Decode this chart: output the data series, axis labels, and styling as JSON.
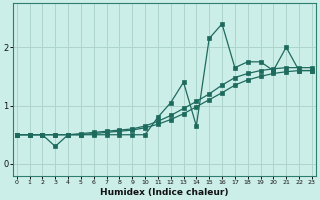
{
  "xlabel": "Humidex (Indice chaleur)",
  "bg_color": "#cceee8",
  "line_color": "#1e6b5e",
  "grid_color": "#aed4ce",
  "x_ticks": [
    0,
    1,
    2,
    3,
    4,
    5,
    6,
    7,
    8,
    9,
    10,
    11,
    12,
    13,
    14,
    15,
    16,
    17,
    18,
    19,
    20,
    21,
    22,
    23
  ],
  "y_ticks": [
    0,
    1,
    2
  ],
  "xlim": [
    -0.3,
    23.3
  ],
  "ylim": [
    -0.2,
    2.75
  ],
  "line1_x": [
    0,
    1,
    2,
    3,
    4,
    5,
    6,
    7,
    8,
    9,
    10,
    11,
    12,
    13,
    14,
    15,
    16,
    17,
    18,
    19,
    20,
    21,
    22,
    23
  ],
  "line1_y": [
    0.5,
    0.5,
    0.5,
    0.3,
    0.5,
    0.5,
    0.5,
    0.5,
    0.5,
    0.5,
    0.5,
    0.8,
    1.05,
    1.4,
    0.65,
    2.15,
    2.4,
    1.65,
    1.75,
    1.75,
    1.6,
    2.0,
    1.6,
    1.6
  ],
  "line2_x": [
    0,
    1,
    2,
    3,
    4,
    5,
    6,
    7,
    8,
    9,
    10,
    11,
    12,
    13,
    14,
    15,
    16,
    17,
    18,
    19,
    20,
    21,
    22,
    23
  ],
  "line2_y": [
    0.5,
    0.5,
    0.5,
    0.5,
    0.5,
    0.52,
    0.54,
    0.56,
    0.58,
    0.6,
    0.65,
    0.73,
    0.83,
    0.95,
    1.07,
    1.2,
    1.35,
    1.48,
    1.55,
    1.6,
    1.63,
    1.65,
    1.65,
    1.65
  ],
  "line3_x": [
    0,
    1,
    2,
    3,
    4,
    5,
    6,
    7,
    8,
    9,
    10,
    11,
    12,
    13,
    14,
    15,
    16,
    17,
    18,
    19,
    20,
    21,
    22,
    23
  ],
  "line3_y": [
    0.5,
    0.5,
    0.5,
    0.5,
    0.5,
    0.5,
    0.52,
    0.54,
    0.56,
    0.58,
    0.62,
    0.68,
    0.76,
    0.86,
    0.98,
    1.1,
    1.22,
    1.35,
    1.44,
    1.5,
    1.55,
    1.58,
    1.6,
    1.6
  ]
}
